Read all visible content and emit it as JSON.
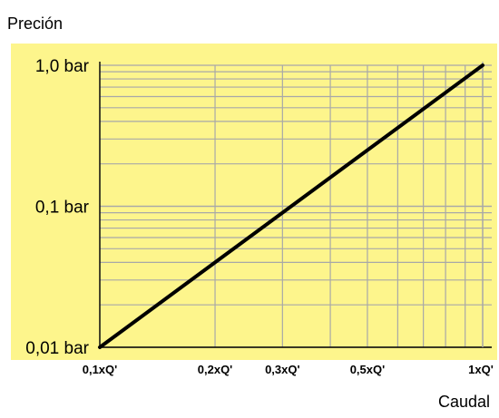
{
  "chart_data": {
    "type": "line",
    "title": "",
    "ylabel": "Preción",
    "xlabel": "Caudal",
    "x_scale": "log",
    "y_scale": "log",
    "xlim": [
      0.1,
      1.0
    ],
    "ylim": [
      0.01,
      1.0
    ],
    "x_ticks": [
      {
        "value": 0.1,
        "label": "0,1xQ'"
      },
      {
        "value": 0.2,
        "label": "0,2xQ'"
      },
      {
        "value": 0.3,
        "label": "0,3xQ'"
      },
      {
        "value": 0.5,
        "label": "0,5xQ'"
      },
      {
        "value": 1.0,
        "label": "1xQ'"
      }
    ],
    "y_ticks": [
      {
        "value": 0.01,
        "label": "0,01 bar"
      },
      {
        "value": 0.1,
        "label": "0,1 bar"
      },
      {
        "value": 1.0,
        "label": "1,0 bar"
      }
    ],
    "grid": true,
    "series": [
      {
        "x": [
          0.1,
          1.0
        ],
        "y": [
          0.01,
          1.0
        ]
      }
    ],
    "colors": {
      "plot_background": "#fdf58c",
      "grid": "#a8a8a8",
      "line": "#000000"
    }
  }
}
